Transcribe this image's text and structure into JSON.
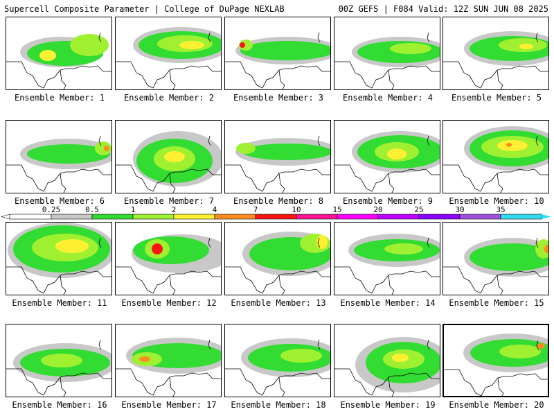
{
  "header": {
    "left_title": "Supercell Composite Parameter | College of DuPage NEXLAB",
    "right_title": "00Z GEFS | F084 Valid: 12Z SUN JUN 08 2025"
  },
  "legend": {
    "labels": [
      "0.25",
      "0.5",
      "1",
      "2",
      "4",
      "7",
      "10",
      "15",
      "20",
      "25",
      "30",
      "35"
    ],
    "colors": [
      "#ffffff",
      "#c8c8c8",
      "#32dc32",
      "#a0f032",
      "#fff032",
      "#ff8c1e",
      "#ff1414",
      "#ff1493",
      "#ff00ff",
      "#be00ff",
      "#8c00ff",
      "#a050dc",
      "#32dcf0"
    ]
  },
  "colors": {
    "gray": "#c8c8c8",
    "green": "#32dc32",
    "lightgreen": "#a0f032",
    "yellow": "#fff032",
    "orange": "#ff8c1e",
    "red": "#ff1414",
    "border": "#000000"
  },
  "panels": [
    {
      "label": "Ensemble Member: 1"
    },
    {
      "label": "Ensemble Member: 2"
    },
    {
      "label": "Ensemble Member: 3"
    },
    {
      "label": "Ensemble Member: 4"
    },
    {
      "label": "Ensemble Member: 5"
    },
    {
      "label": "Ensemble Member: 6"
    },
    {
      "label": "Ensemble Member: 7"
    },
    {
      "label": "Ensemble Member: 8"
    },
    {
      "label": "Ensemble Member: 9"
    },
    {
      "label": "Ensemble Member: 10"
    },
    {
      "label": "Ensemble Member: 11"
    },
    {
      "label": "Ensemble Member: 12"
    },
    {
      "label": "Ensemble Member: 13"
    },
    {
      "label": "Ensemble Member: 14"
    },
    {
      "label": "Ensemble Member: 15"
    },
    {
      "label": "Ensemble Member: 16"
    },
    {
      "label": "Ensemble Member: 17"
    },
    {
      "label": "Ensemble Member: 18"
    },
    {
      "label": "Ensemble Member: 19"
    },
    {
      "label": "Ensemble Member: 20",
      "selected": true
    }
  ]
}
